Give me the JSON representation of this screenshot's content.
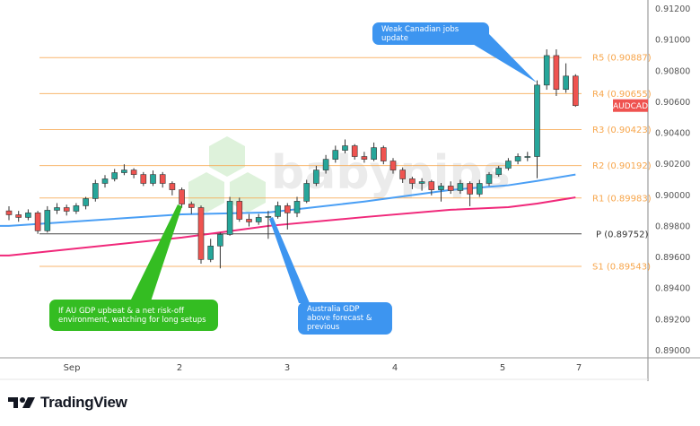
{
  "chart_data": {
    "type": "candlestick",
    "symbol": "AUDCAD",
    "ylim": [
      0.89,
      0.912
    ],
    "y_ticks": [
      "0.91200",
      "0.91000",
      "0.90800",
      "0.90600",
      "0.90400",
      "0.90200",
      "0.90000",
      "0.89800",
      "0.89600",
      "0.89400",
      "0.89200",
      "0.89000"
    ],
    "x_ticks": [
      "Sep",
      "2",
      "3",
      "4",
      "5",
      "7"
    ],
    "x_tick_candle_index": [
      7,
      18,
      29,
      40,
      52,
      60
    ],
    "candles": [
      [
        0.899,
        0.8993,
        0.8984,
        0.89875
      ],
      [
        0.89875,
        0.899,
        0.8983,
        0.89858
      ],
      [
        0.89858,
        0.8991,
        0.8984,
        0.89887
      ],
      [
        0.89887,
        0.899,
        0.89752,
        0.89772
      ],
      [
        0.89772,
        0.8993,
        0.8976,
        0.89904
      ],
      [
        0.89904,
        0.8995,
        0.8988,
        0.89921
      ],
      [
        0.89921,
        0.8994,
        0.8987,
        0.89898
      ],
      [
        0.89898,
        0.8995,
        0.8988,
        0.89933
      ],
      [
        0.89933,
        0.8999,
        0.8991,
        0.89979
      ],
      [
        0.89979,
        0.901,
        0.8996,
        0.90077
      ],
      [
        0.90077,
        0.9013,
        0.9005,
        0.90106
      ],
      [
        0.90106,
        0.9017,
        0.9009,
        0.90146
      ],
      [
        0.90146,
        0.902,
        0.9013,
        0.90163
      ],
      [
        0.90163,
        0.90175,
        0.9011,
        0.90134
      ],
      [
        0.90134,
        0.9015,
        0.9006,
        0.90077
      ],
      [
        0.90077,
        0.9016,
        0.9006,
        0.90134
      ],
      [
        0.90134,
        0.9015,
        0.9005,
        0.90077
      ],
      [
        0.90077,
        0.9009,
        0.9,
        0.90036
      ],
      [
        0.90036,
        0.9005,
        0.8992,
        0.89944
      ],
      [
        0.89944,
        0.8996,
        0.8988,
        0.89921
      ],
      [
        0.89921,
        0.89935,
        0.8956,
        0.89587
      ],
      [
        0.89587,
        0.8972,
        0.8957,
        0.89674
      ],
      [
        0.89674,
        0.8976,
        0.8953,
        0.89748
      ],
      [
        0.89748,
        0.8999,
        0.8974,
        0.89962
      ],
      [
        0.89962,
        0.89985,
        0.8983,
        0.89846
      ],
      [
        0.89846,
        0.8988,
        0.898,
        0.89829
      ],
      [
        0.89829,
        0.8988,
        0.8981,
        0.89858
      ],
      [
        0.89858,
        0.899,
        0.8972,
        0.89864
      ],
      [
        0.89864,
        0.8996,
        0.8985,
        0.89933
      ],
      [
        0.89933,
        0.8995,
        0.8978,
        0.89887
      ],
      [
        0.89887,
        0.8999,
        0.8986,
        0.89962
      ],
      [
        0.89962,
        0.901,
        0.8995,
        0.90077
      ],
      [
        0.90077,
        0.9019,
        0.9006,
        0.90163
      ],
      [
        0.90163,
        0.9026,
        0.9014,
        0.90232
      ],
      [
        0.90232,
        0.9032,
        0.9021,
        0.9029
      ],
      [
        0.9029,
        0.9036,
        0.9027,
        0.90319
      ],
      [
        0.90319,
        0.9033,
        0.9023,
        0.9025
      ],
      [
        0.9025,
        0.9028,
        0.9021,
        0.90232
      ],
      [
        0.90232,
        0.9034,
        0.9022,
        0.90307
      ],
      [
        0.90307,
        0.9032,
        0.902,
        0.90221
      ],
      [
        0.90221,
        0.9024,
        0.9014,
        0.90163
      ],
      [
        0.90163,
        0.9018,
        0.9008,
        0.90106
      ],
      [
        0.90106,
        0.9012,
        0.9004,
        0.90077
      ],
      [
        0.90077,
        0.9011,
        0.9003,
        0.90088
      ],
      [
        0.90088,
        0.901,
        0.9,
        0.90036
      ],
      [
        0.90036,
        0.9008,
        0.8996,
        0.9006
      ],
      [
        0.9006,
        0.9009,
        0.9001,
        0.90031
      ],
      [
        0.90031,
        0.901,
        0.9001,
        0.90077
      ],
      [
        0.90077,
        0.9009,
        0.8993,
        0.90008
      ],
      [
        0.90008,
        0.901,
        0.8999,
        0.90077
      ],
      [
        0.90077,
        0.9015,
        0.9006,
        0.90134
      ],
      [
        0.90134,
        0.9019,
        0.9012,
        0.90175
      ],
      [
        0.90175,
        0.9024,
        0.9016,
        0.90221
      ],
      [
        0.90221,
        0.9027,
        0.902,
        0.9025
      ],
      [
        0.9025,
        0.9028,
        0.9022,
        0.9025
      ],
      [
        0.9025,
        0.9074,
        0.9011,
        0.9071
      ],
      [
        0.9071,
        0.9094,
        0.9068,
        0.909
      ],
      [
        0.909,
        0.9094,
        0.9064,
        0.90682
      ],
      [
        0.90682,
        0.9085,
        0.9066,
        0.90768
      ],
      [
        0.90768,
        0.9078,
        0.9057,
        0.90578
      ]
    ],
    "moving_averages": [
      {
        "color": "#4a9ff5",
        "points": [
          [
            0,
            0.89803
          ],
          [
            18,
            0.89878
          ],
          [
            27,
            0.8989
          ],
          [
            37,
            0.8996
          ],
          [
            46,
            0.90035
          ],
          [
            52,
            0.90065
          ],
          [
            55,
            0.90093
          ],
          [
            59,
            0.90134
          ]
        ]
      },
      {
        "color": "#f0287a",
        "points": [
          [
            0,
            0.89613
          ],
          [
            18,
            0.89728
          ],
          [
            27,
            0.89803
          ],
          [
            37,
            0.8986
          ],
          [
            46,
            0.89907
          ],
          [
            52,
            0.89924
          ],
          [
            55,
            0.89947
          ],
          [
            59,
            0.89987
          ]
        ]
      }
    ],
    "pivot_levels": [
      {
        "name": "R5",
        "value": 0.90887,
        "label": "R5 (0.90887)"
      },
      {
        "name": "R4",
        "value": 0.90655,
        "label": "R4 (0.90655)"
      },
      {
        "name": "R3",
        "value": 0.90423,
        "label": "R3 (0.90423)"
      },
      {
        "name": "R2",
        "value": 0.90192,
        "label": "R2 (0.90192)"
      },
      {
        "name": "R1",
        "value": 0.89983,
        "label": "R1 (0.89983)"
      },
      {
        "name": "P",
        "value": 0.89752,
        "label": "P (0.89752)"
      },
      {
        "name": "S1",
        "value": 0.89543,
        "label": "S1 (0.89543)"
      }
    ],
    "last_price_tag": "AUDCAD",
    "colors": {
      "up": "#26a69a",
      "down": "#ef5350",
      "pivot": "#f7a54a",
      "pivot_p": "#333333",
      "tag": "#ef5350"
    }
  },
  "annotations": {
    "jobs": {
      "text": "Weak Canadian jobs update",
      "color": "#3d95f0"
    },
    "au_gdp_setup": {
      "text": "If AU GDP upbeat & a net risk-off environment, watching for long setups",
      "color": "#34bd22"
    },
    "au_gdp_result": {
      "text": "Australia GDP above forecast & previous",
      "color": "#3d95f0"
    }
  },
  "watermark": "babypips",
  "footer": {
    "logo_text": "TradingView"
  }
}
